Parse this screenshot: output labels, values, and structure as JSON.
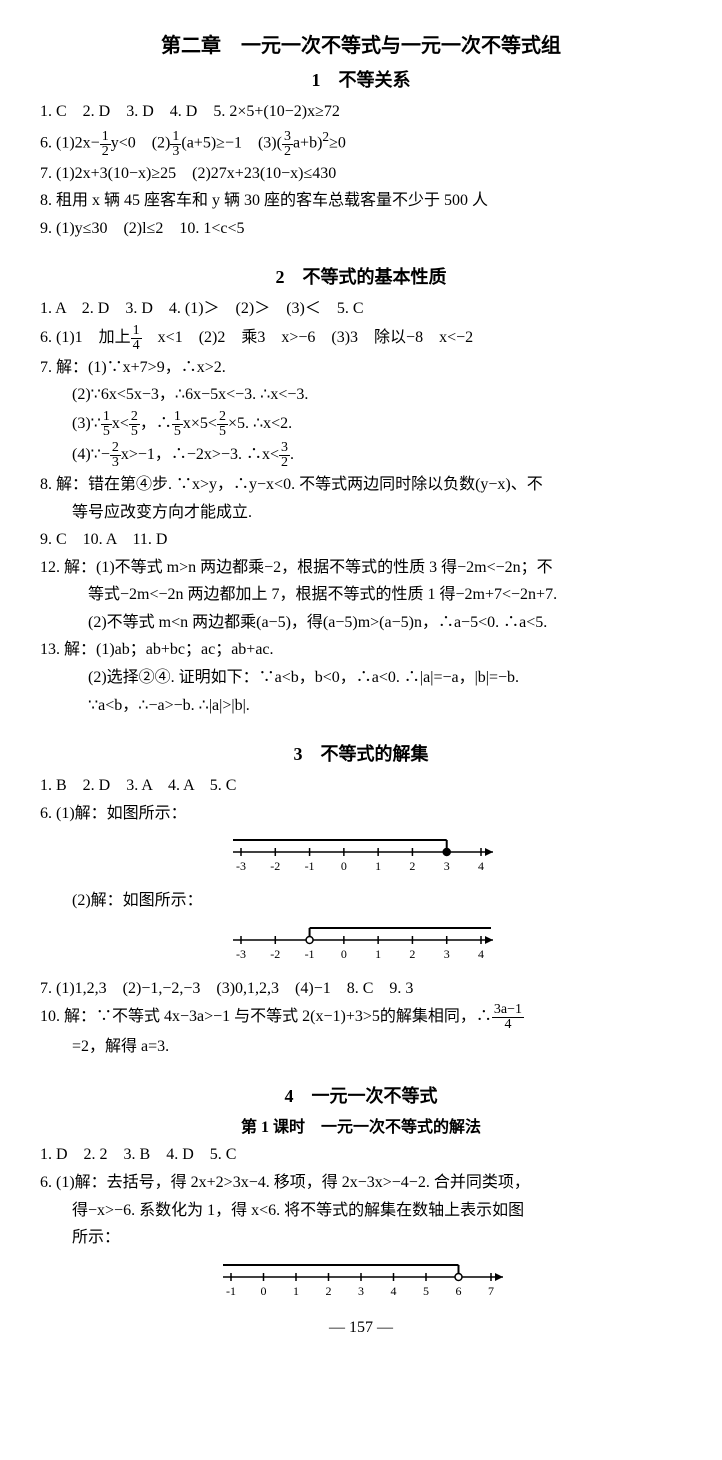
{
  "chapter_title": "第二章　一元一次不等式与一元一次不等式组",
  "s1": {
    "title": "1　不等关系",
    "l1": "1. C　2. D　3. D　4. D　5. 2×5+(10−2)x≥72",
    "l6a": "6. (1)2x−",
    "l6b": "y<0　(2)",
    "l6c": "(a+5)≥−1　(3)",
    "l6d": "a+b",
    "l6e": "≥0",
    "l7": "7. (1)2x+3(10−x)≥25　(2)27x+23(10−x)≤430",
    "l8": "8. 租用 x 辆 45 座客车和 y 辆 30 座的客车总载客量不少于 500 人",
    "l9": "9. (1)y≤30　(2)l≤2　10. 1<c<5"
  },
  "s2": {
    "title": "2　不等式的基本性质",
    "l1": "1. A　2. D　3. D　4. (1)＞　(2)＞　(3)＜　5. C",
    "l6a": "6. (1)1　加上",
    "l6b": "　x<1　(2)2　乘3　x>−6　(3)3　除以−8　x<−2",
    "l7": "7. 解：(1)∵x+7>9，∴x>2.",
    "l7_2": "(2)∵6x<5x−3，∴6x−5x<−3. ∴x<−3.",
    "l7_3a": "(3)∵",
    "l7_3b": "x<",
    "l7_3c": "，∴",
    "l7_3d": "x×5<",
    "l7_3e": "×5. ∴x<2.",
    "l7_4a": "(4)∵−",
    "l7_4b": "x>−1，∴−2x>−3. ∴x<",
    "l7_4c": ".",
    "l8a": "8. 解：错在第④步. ∵x>y，∴y−x<0. 不等式两边同时除以负数(y−x)、不",
    "l8b": "等号应改变方向才能成立.",
    "l9": "9. C　10. A　11. D",
    "l12a": "12. 解：(1)不等式 m>n 两边都乘−2，根据不等式的性质 3 得−2m<−2n；不",
    "l12b": "等式−2m<−2n 两边都加上 7，根据不等式的性质 1 得−2m+7<−2n+7.",
    "l12c": "(2)不等式 m<n 两边都乘(a−5)，得(a−5)m>(a−5)n，∴a−5<0. ∴a<5.",
    "l13a": "13. 解：(1)ab；ab+bc；ac；ab+ac.",
    "l13b": "(2)选择②④. 证明如下：∵a<b，b<0，∴a<0. ∴|a|=−a，|b|=−b.",
    "l13c": "∵a<b，∴−a>−b. ∴|a|>|b|."
  },
  "s3": {
    "title": "3　不等式的解集",
    "l1": "1. B　2. D　3. A　4. A　5. C",
    "l6_1": "6. (1)解：如图所示：",
    "l6_2": "(2)解：如图所示：",
    "l7": "7. (1)1,2,3　(2)−1,−2,−3　(3)0,1,2,3　(4)−1　8. C　9. 3",
    "l10a": "10. 解：∵不等式 4x−3a>−1 与不等式 2(x−1)+3>5的解集相同，∴",
    "l10b": "=2，解得 a=3.",
    "nl1": {
      "min": -3,
      "max": 4,
      "mark_from": 3,
      "open": false,
      "dir": "left"
    },
    "nl2": {
      "min": -3,
      "max": 4,
      "mark_from": -1,
      "open": true,
      "dir": "right"
    }
  },
  "s4": {
    "title": "4　一元一次不等式",
    "subtitle": "第 1 课时　一元一次不等式的解法",
    "l1": "1. D　2. 2　3. B　4. D　5. C",
    "l6a": "6. (1)解：去括号，得 2x+2>3x−4. 移项，得 2x−3x>−4−2. 合并同类项，",
    "l6b": "得−x>−6. 系数化为 1，得 x<6. 将不等式的解集在数轴上表示如图",
    "l6c": "所示：",
    "nl": {
      "min": -1,
      "max": 7,
      "mark_from": 6,
      "open": true,
      "dir": "left"
    }
  },
  "page": "— 157 —"
}
